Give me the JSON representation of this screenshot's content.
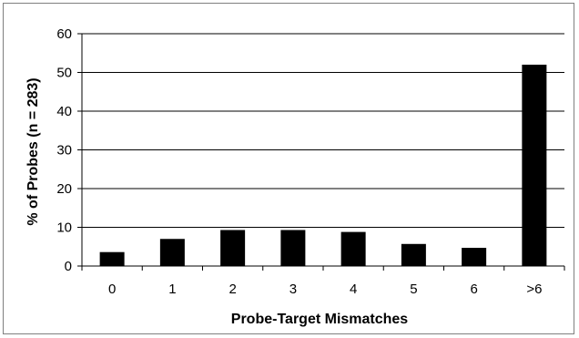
{
  "chart_data": {
    "type": "bar",
    "title": "",
    "xlabel": "Probe-Target Mismatches",
    "ylabel": "% of Probes (n = 283)",
    "categories": [
      "0",
      "1",
      "2",
      "3",
      "4",
      "5",
      "6",
      ">6"
    ],
    "values": [
      3.6,
      7.0,
      9.3,
      9.3,
      8.8,
      5.7,
      4.7,
      52.0
    ],
    "ylim": [
      0,
      60
    ],
    "yticks": [
      "0",
      "10",
      "20",
      "30",
      "40",
      "50",
      "60"
    ],
    "grid": true,
    "legend": "none",
    "bar_color": "#000000",
    "grid_color": "#000000"
  }
}
